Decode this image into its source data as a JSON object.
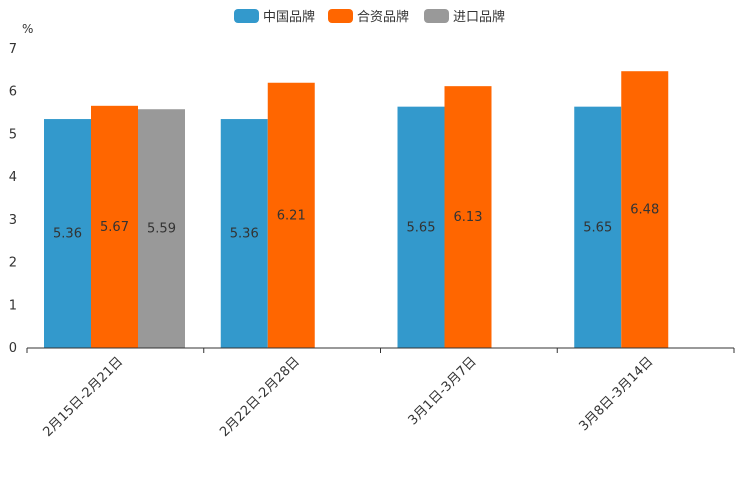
{
  "chart_data": {
    "type": "bar",
    "title": "",
    "xlabel": "",
    "ylabel": "",
    "unit": "%",
    "ylim": [
      0,
      7
    ],
    "yticks": [
      0,
      1,
      2,
      3,
      4,
      5,
      6,
      7
    ],
    "grid": false,
    "legend_position": "top-center",
    "categories": [
      "2月15日-2月21日",
      "2月22日-2月28日",
      "3月1日-3月7日",
      "3月8日-3月14日"
    ],
    "series": [
      {
        "name": "中国品牌",
        "color": "#3399cc",
        "values": [
          5.36,
          5.36,
          5.65,
          5.65
        ]
      },
      {
        "name": "合资品牌",
        "color": "#ff6600",
        "values": [
          5.67,
          6.21,
          6.13,
          6.48
        ]
      },
      {
        "name": "进口品牌",
        "color": "#999999",
        "values": [
          5.59,
          null,
          null,
          null
        ]
      }
    ]
  }
}
